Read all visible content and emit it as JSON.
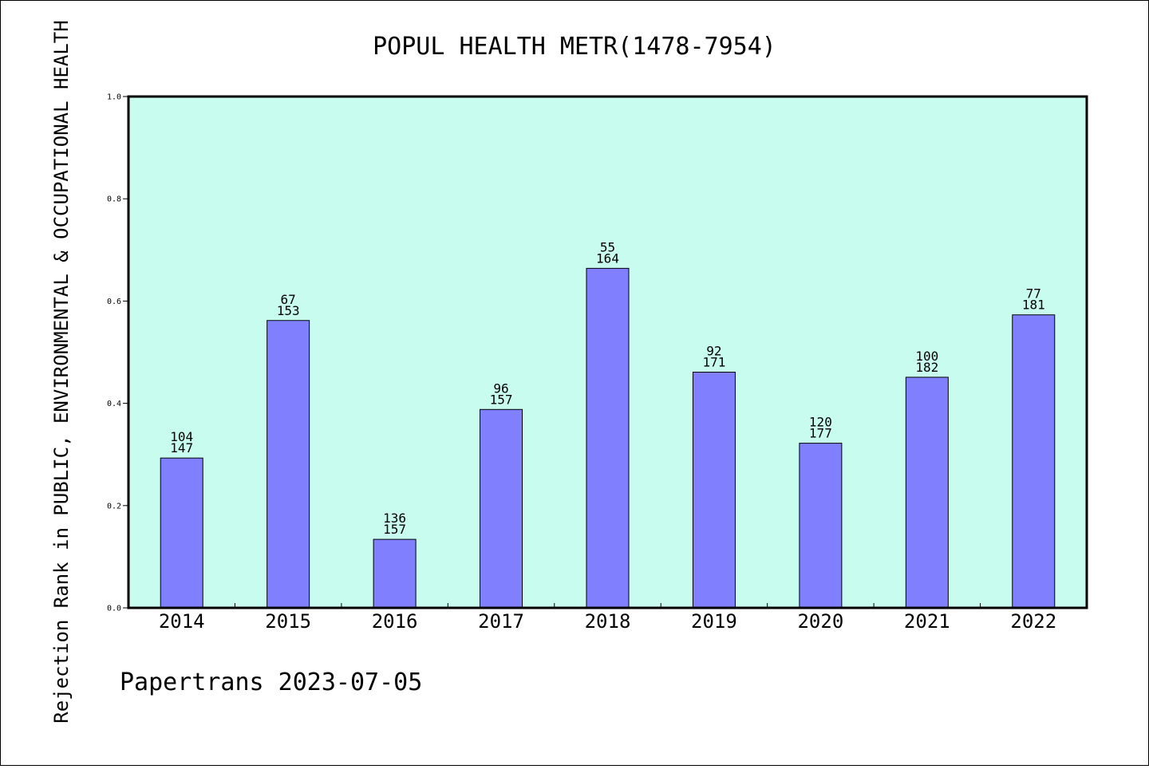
{
  "chart_data": {
    "type": "bar",
    "title": "POPUL HEALTH METR(1478-7954)",
    "ylabel": "Rejection Rank in PUBLIC, ENVIRONMENTAL & OCCUPATIONAL HEALTH",
    "xlabel": "",
    "categories": [
      "2014",
      "2015",
      "2016",
      "2017",
      "2018",
      "2019",
      "2020",
      "2021",
      "2022"
    ],
    "values": [
      0.293,
      0.562,
      0.134,
      0.388,
      0.664,
      0.461,
      0.322,
      0.451,
      0.573
    ],
    "label_top": [
      "104",
      "67",
      "136",
      "96",
      "55",
      "92",
      "120",
      "100",
      "77"
    ],
    "label_bottom": [
      "147",
      "153",
      "157",
      "157",
      "164",
      "171",
      "177",
      "182",
      "181"
    ],
    "ylim": [
      0,
      1.0
    ],
    "yticks": [
      "0.0",
      "0.2",
      "0.4",
      "0.6",
      "0.8",
      "1.0"
    ],
    "grid": false,
    "colors": {
      "plot_bg": "#c8fcee",
      "bar": "#8080ff",
      "bar_edge": "#000000"
    }
  },
  "footer": {
    "text": "Papertrans 2023-07-05"
  }
}
